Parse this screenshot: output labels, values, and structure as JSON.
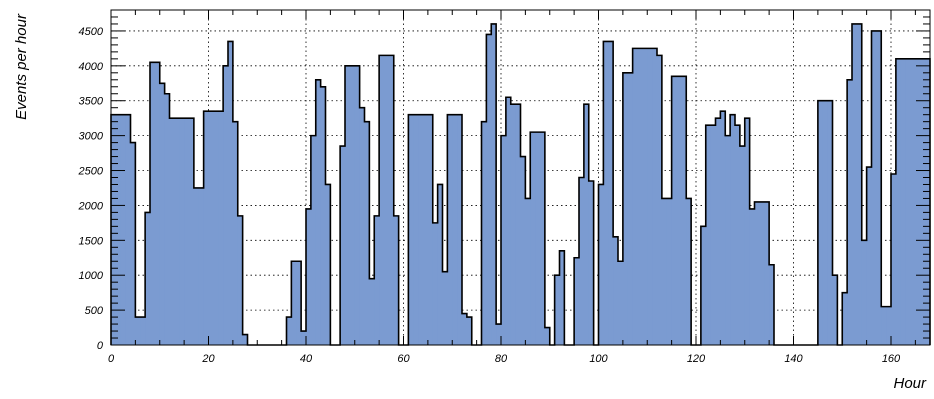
{
  "chart_data": {
    "type": "bar",
    "title": "",
    "xlabel": "Hour",
    "ylabel": "Events per hour",
    "xlim": [
      0,
      168
    ],
    "ylim": [
      0,
      4800
    ],
    "grid": true,
    "legend": "none",
    "bin_width": 1,
    "x_ticks": [
      0,
      20,
      40,
      60,
      80,
      100,
      120,
      140,
      160
    ],
    "x_tick_labels": [
      "0",
      "20",
      "40",
      "60",
      "80",
      "100",
      "120",
      "140",
      "160"
    ],
    "y_ticks": [
      0,
      500,
      1000,
      1500,
      2000,
      2500,
      3000,
      3500,
      4000,
      4500
    ],
    "y_tick_labels": [
      "0",
      "500",
      "1000",
      "1500",
      "2000",
      "2500",
      "3000",
      "3500",
      "4000",
      "4500"
    ],
    "colors": {
      "fill": "#7b9bd1",
      "edge": "#000000",
      "grid": "#000000"
    },
    "values": [
      3300,
      3300,
      3300,
      3300,
      2900,
      400,
      400,
      1900,
      4050,
      4050,
      3750,
      3600,
      3250,
      3250,
      3250,
      3250,
      3250,
      2250,
      2250,
      3350,
      3350,
      3350,
      3350,
      4000,
      4350,
      3200,
      1850,
      150,
      0,
      0,
      0,
      0,
      0,
      0,
      0,
      0,
      400,
      1200,
      1200,
      200,
      1950,
      3000,
      3800,
      3700,
      2300,
      0,
      0,
      2850,
      4000,
      4000,
      4000,
      3400,
      3200,
      950,
      1850,
      4150,
      4150,
      4150,
      1850,
      0,
      0,
      3300,
      3300,
      3300,
      3300,
      3300,
      1750,
      2300,
      1050,
      3300,
      3300,
      3300,
      450,
      400,
      0,
      0,
      3200,
      4450,
      4600,
      300,
      3000,
      3550,
      3450,
      3450,
      2700,
      2100,
      3050,
      3050,
      3050,
      250,
      0,
      1000,
      1350,
      0,
      0,
      1250,
      2400,
      3450,
      2350,
      0,
      2300,
      4350,
      4350,
      1550,
      1200,
      3900,
      3900,
      4250,
      4250,
      4250,
      4250,
      4250,
      4150,
      2100,
      2100,
      3850,
      3850,
      3850,
      2100,
      0,
      0,
      1700,
      3150,
      3150,
      3250,
      3350,
      3000,
      3300,
      3150,
      2850,
      3250,
      1950,
      2050,
      2050,
      2050,
      1150,
      0,
      0,
      0,
      0,
      0,
      0,
      0,
      0,
      0,
      3500,
      3500,
      3500,
      1000,
      0,
      750,
      3800,
      4600,
      4600,
      1500,
      2550,
      4500,
      4500,
      550,
      550,
      2450,
      4100,
      4100,
      4100,
      4100,
      4100,
      4100,
      4100
    ]
  }
}
